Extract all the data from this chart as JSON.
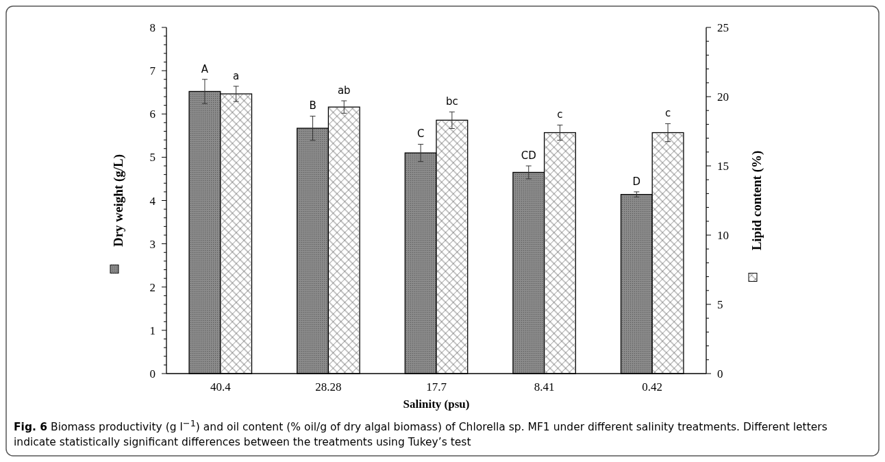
{
  "chart_data": {
    "type": "bar",
    "categories": [
      "40.4",
      "28.28",
      "17.7",
      "8.41",
      "0.42"
    ],
    "xlabel": "Salinity (psu)",
    "ylabel": "Dry weight (g/L)",
    "y2label": "Lipid content (%)",
    "series": [
      {
        "color": "#8c8c8c",
        "values": [
          6.52,
          5.67,
          5.1,
          4.65,
          4.14
        ],
        "errors": [
          0.28,
          0.28,
          0.2,
          0.15,
          0.06
        ],
        "value_labels": [
          "A",
          "B",
          "C",
          "CD",
          "D"
        ]
      },
      {
        "color": "#ffffff",
        "axis": "y2",
        "values": [
          20.2,
          19.25,
          18.3,
          17.4,
          17.4
        ],
        "errors": [
          0.55,
          0.45,
          0.6,
          0.55,
          0.65
        ],
        "value_labels": [
          "a",
          "ab",
          "bc",
          "c",
          "c"
        ]
      }
    ],
    "ylim": [
      0,
      8
    ],
    "yticks": [
      0,
      {
        "value": 0.2,
        "label": null
      },
      {
        "value": 0.4,
        "label": null
      },
      {
        "value": 0.6,
        "label": null
      },
      {
        "value": 0.8,
        "label": null
      },
      1,
      {
        "value": 1.2,
        "label": null
      },
      {
        "value": 1.4,
        "label": null
      },
      {
        "value": 1.6,
        "label": null
      },
      {
        "value": 1.8,
        "label": null
      },
      2,
      {
        "value": 2.2,
        "label": null
      },
      {
        "value": 2.4,
        "label": null
      },
      {
        "value": 2.6,
        "label": null
      },
      {
        "value": 2.8,
        "label": null
      },
      3,
      {
        "value": 3.2,
        "label": null
      },
      {
        "value": 3.4,
        "label": null
      },
      {
        "value": 3.6,
        "label": null
      },
      {
        "value": 3.8,
        "label": null
      },
      4,
      {
        "value": 4.2,
        "label": null
      },
      {
        "value": 4.4,
        "label": null
      },
      {
        "value": 4.6,
        "label": null
      },
      {
        "value": 4.8,
        "label": null
      },
      5,
      {
        "value": 5.2,
        "label": null
      },
      {
        "value": 5.4,
        "label": null
      },
      {
        "value": 5.6,
        "label": null
      },
      {
        "value": 5.8,
        "label": null
      },
      6,
      {
        "value": 6.2,
        "label": null
      },
      {
        "value": 6.4,
        "label": null
      },
      {
        "value": 6.6,
        "label": null
      },
      {
        "value": 6.8,
        "label": null
      },
      7,
      {
        "value": 7.2,
        "label": null
      },
      {
        "value": 7.4,
        "label": null
      },
      {
        "value": 7.6,
        "label": null
      },
      {
        "value": 7.8,
        "label": null
      },
      8
    ],
    "y2lim": [
      0,
      25
    ],
    "y2ticks": [
      0,
      {
        "value": 1,
        "label": null
      },
      {
        "value": 2,
        "label": null
      },
      {
        "value": 3,
        "label": null
      },
      {
        "value": 4,
        "label": null
      },
      5,
      {
        "value": 6,
        "label": null
      },
      {
        "value": 7,
        "label": null
      },
      {
        "value": 8,
        "label": null
      },
      {
        "value": 9,
        "label": null
      },
      10,
      {
        "value": 11,
        "label": null
      },
      {
        "value": 12,
        "label": null
      },
      {
        "value": 13,
        "label": null
      },
      {
        "value": 14,
        "label": null
      },
      15,
      {
        "value": 16,
        "label": null
      },
      {
        "value": 17,
        "label": null
      },
      {
        "value": 18,
        "label": null
      },
      {
        "value": 19,
        "label": null
      },
      20,
      {
        "value": 21,
        "label": null
      },
      {
        "value": 22,
        "label": null
      },
      {
        "value": 23,
        "label": null
      },
      {
        "value": 24,
        "label": null
      },
      25
    ],
    "annotations": [
      "Fig. 6",
      "Biomass productivity (g l$^{−1}$) and oil content (% oil/g of dry algal biomass) of Chlorella sp. MF1 under different salinity treatments. Different letters indicate statistically significant differences between the treatments using Tukey’s test"
    ]
  }
}
